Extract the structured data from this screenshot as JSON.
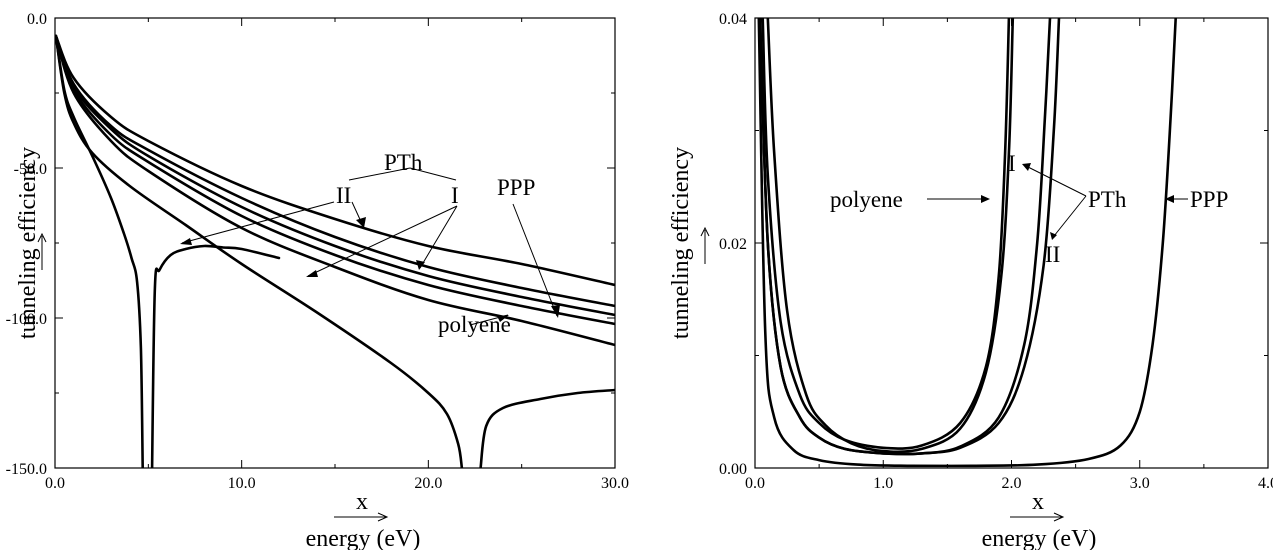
{
  "chart_data": [
    {
      "type": "line",
      "xlabel": "energy (eV)",
      "ylabel": "tunneling efficiency",
      "x_marker": "x",
      "xlim": [
        0,
        30
      ],
      "ylim": [
        -150,
        0
      ],
      "xticks": [
        "0.0",
        "10.0",
        "20.0",
        "30.0"
      ],
      "yticks": [
        "0.0",
        "-50.0",
        "-100.0",
        "-150.0"
      ],
      "grid": false,
      "series": [
        {
          "name": "polyene",
          "x": [
            0.05,
            0.5,
            1,
            2,
            3,
            3.7,
            4.1,
            4.4,
            4.6,
            4.7
          ],
          "y": [
            -6,
            -24,
            -33,
            -46,
            -60,
            -72,
            -80,
            -88,
            -110,
            -150
          ]
        },
        {
          "x": [
            5.2,
            5.35,
            5.6,
            6.2,
            7,
            8,
            9,
            10,
            12
          ],
          "y": [
            -150,
            -90,
            -84,
            -79,
            -77,
            -76,
            -76.5,
            -77,
            -80
          ]
        },
        {
          "x": [
            0.05,
            0.5,
            1,
            2,
            4,
            7,
            10,
            14,
            18,
            20,
            21,
            21.6,
            21.8
          ],
          "y": [
            -6,
            -25,
            -35,
            -45,
            -56,
            -69,
            -82,
            -98,
            -115,
            -125,
            -132,
            -142,
            -150
          ]
        },
        {
          "x": [
            22.8,
            23.1,
            24,
            26,
            28,
            30
          ],
          "y": [
            -150,
            -136,
            -130,
            -127,
            -125,
            -124
          ]
        },
        {
          "x": [
            0.05,
            1,
            3,
            5,
            10,
            15,
            20,
            25,
            30
          ],
          "y": [
            -6,
            -20,
            -33,
            -41,
            -56,
            -67,
            -76,
            -82,
            -89
          ]
        },
        {
          "x": [
            0.05,
            1,
            3,
            5,
            10,
            15,
            20,
            25,
            30
          ],
          "y": [
            -6,
            -22,
            -36,
            -44,
            -60,
            -73,
            -83,
            -90,
            -96
          ]
        },
        {
          "x": [
            0.05,
            1,
            3,
            5,
            10,
            15,
            20,
            25,
            30
          ],
          "y": [
            -6,
            -23,
            -37,
            -46,
            -63,
            -76,
            -86,
            -93,
            -99
          ]
        },
        {
          "x": [
            0.05,
            1,
            3,
            5,
            10,
            15,
            20,
            25,
            30
          ],
          "y": [
            -6,
            -24,
            -39,
            -48,
            -66,
            -79,
            -89,
            -96,
            -102
          ]
        },
        {
          "x": [
            0.05,
            1,
            3,
            5,
            10,
            15,
            20,
            25,
            30
          ],
          "y": [
            -6,
            -25,
            -41,
            -51,
            -70,
            -83,
            -94,
            -101,
            -109
          ]
        }
      ],
      "annotations": {
        "pth": "PTh",
        "ii": "II",
        "i": "I",
        "ppp": "PPP",
        "polyene": "polyene"
      }
    },
    {
      "type": "line",
      "xlabel": "energy (eV)",
      "ylabel": "tunneling efficiency",
      "x_marker": "x",
      "xlim": [
        0,
        4
      ],
      "ylim": [
        0,
        0.04
      ],
      "xticks": [
        "0.0",
        "1.0",
        "2.0",
        "3.0",
        "4.0"
      ],
      "yticks": [
        "0.00",
        "0.02",
        "0.04"
      ],
      "grid": false,
      "series": [
        {
          "x": [
            0.06,
            0.1,
            0.2,
            0.35,
            0.5,
            0.7,
            1.0,
            1.3,
            1.6,
            1.8,
            1.9,
            1.95,
            1.98
          ],
          "y": [
            0.04,
            0.026,
            0.013,
            0.0065,
            0.004,
            0.0025,
            0.0018,
            0.002,
            0.004,
            0.009,
            0.017,
            0.028,
            0.04
          ]
        },
        {
          "x": [
            0.1,
            0.15,
            0.25,
            0.4,
            0.55,
            0.75,
            1.0,
            1.3,
            1.6,
            1.8,
            1.92,
            1.98,
            2.01
          ],
          "y": [
            0.04,
            0.028,
            0.014,
            0.0065,
            0.0038,
            0.0022,
            0.0015,
            0.0017,
            0.0035,
            0.0085,
            0.017,
            0.028,
            0.04
          ]
        },
        {
          "x": [
            0.04,
            0.1,
            0.2,
            0.35,
            0.5,
            0.7,
            1.0,
            1.3,
            1.6,
            1.9,
            2.1,
            2.25,
            2.33,
            2.37
          ],
          "y": [
            0.04,
            0.02,
            0.009,
            0.0045,
            0.0027,
            0.0017,
            0.0013,
            0.0013,
            0.0018,
            0.004,
            0.009,
            0.018,
            0.03,
            0.04
          ]
        },
        {
          "x": [
            0.04,
            0.1,
            0.2,
            0.35,
            0.5,
            0.7,
            1.0,
            1.3,
            1.6,
            1.9,
            2.1,
            2.2,
            2.26,
            2.3
          ],
          "y": [
            0.04,
            0.02,
            0.009,
            0.0045,
            0.0027,
            0.0017,
            0.0013,
            0.0013,
            0.0019,
            0.0045,
            0.011,
            0.02,
            0.031,
            0.04
          ]
        },
        {
          "x": [
            0.03,
            0.08,
            0.15,
            0.3,
            0.5,
            0.8,
            1.2,
            1.7,
            2.2,
            2.6,
            2.85,
            3.0,
            3.1,
            3.18,
            3.24,
            3.28
          ],
          "y": [
            0.04,
            0.012,
            0.0045,
            0.0016,
            0.0007,
            0.0003,
            0.0002,
            0.0002,
            0.0003,
            0.0008,
            0.002,
            0.005,
            0.011,
            0.02,
            0.031,
            0.04
          ]
        }
      ],
      "annotations": {
        "i": "I",
        "polyene": "polyene",
        "pth": "PTh",
        "ppp": "PPP",
        "ii": "II"
      }
    }
  ]
}
